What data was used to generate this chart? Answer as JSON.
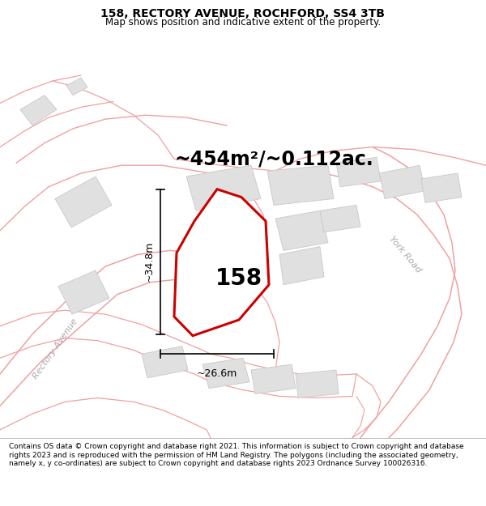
{
  "title_line1": "158, RECTORY AVENUE, ROCHFORD, SS4 3TB",
  "title_line2": "Map shows position and indicative extent of the property.",
  "footer_text": "Contains OS data © Crown copyright and database right 2021. This information is subject to Crown copyright and database rights 2023 and is reproduced with the permission of HM Land Registry. The polygons (including the associated geometry, namely x, y co-ordinates) are subject to Crown copyright and database rights 2023 Ordnance Survey 100026316.",
  "area_label": "~454m²/~0.112ac.",
  "property_number": "158",
  "dim_height": "~34.8m",
  "dim_width": "~26.6m",
  "bg_map_color": "#f2f2f2",
  "bg_title_color": "#ffffff",
  "bg_footer_color": "#ffffff",
  "road_color_light": "#f0a0a0",
  "building_color": "#e0e0e0",
  "building_outline": "#c8c8c8",
  "property_outline": "#cc0000",
  "property_fill": "#ffffff",
  "road_label_rectory": "Rectory Avenue",
  "road_label_york": "York Road",
  "title_fontsize": 10,
  "subtitle_fontsize": 8.5,
  "area_fontsize": 17,
  "num_fontsize": 20,
  "dim_fontsize": 9,
  "road_label_fontsize": 8,
  "footer_fontsize": 6.5
}
